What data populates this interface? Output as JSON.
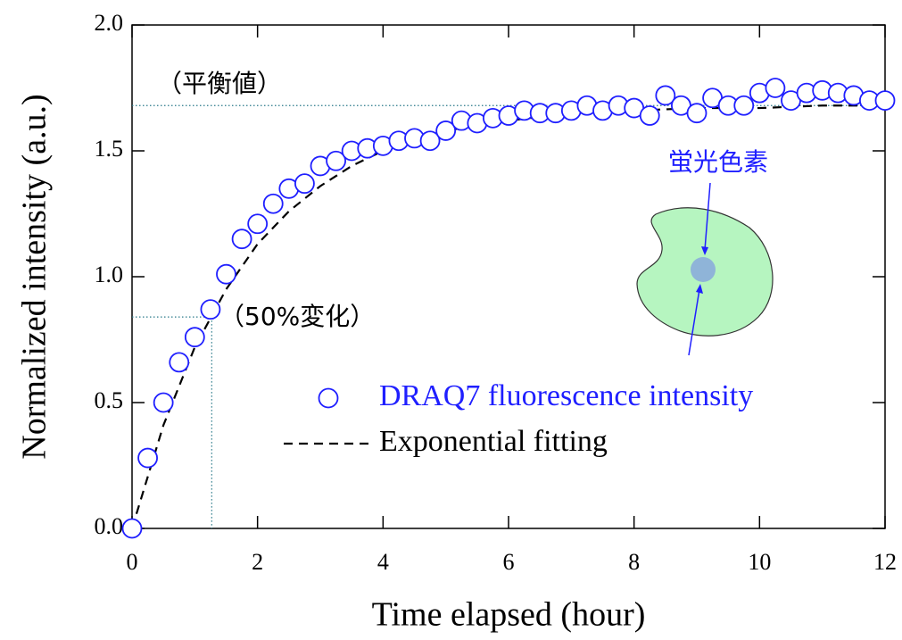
{
  "chart_data": {
    "type": "scatter",
    "x_label": "Time elapsed (hour)",
    "y_label": "Normalized intensity (a.u.)",
    "xlim": [
      0,
      12
    ],
    "ylim": [
      0,
      2
    ],
    "xticks": [
      0,
      2,
      4,
      6,
      8,
      10,
      12
    ],
    "yticks": [
      {
        "value": 0,
        "label": "0.0"
      },
      0.5,
      {
        "value": 1,
        "label": "1.0"
      },
      1.5,
      {
        "value": 2,
        "label": "2.0"
      }
    ],
    "series": [
      {
        "name": "DRAQ7 fluorescence intensity",
        "type": "scatter",
        "color": "#1f1fff",
        "x": [
          0,
          0.25,
          0.5,
          0.75,
          1,
          1.25,
          1.5,
          1.75,
          2,
          2.25,
          2.5,
          2.75,
          3,
          3.25,
          3.5,
          3.75,
          4,
          4.25,
          4.5,
          4.75,
          5,
          5.25,
          5.5,
          5.75,
          6,
          6.25,
          6.5,
          6.75,
          7,
          7.25,
          7.5,
          7.75,
          8,
          8.25,
          8.5,
          8.75,
          9,
          9.25,
          9.5,
          9.75,
          10,
          10.25,
          10.5,
          10.75,
          11,
          11.25,
          11.5,
          11.75,
          12
        ],
        "values": [
          0,
          0.28,
          0.5,
          0.66,
          0.76,
          0.87,
          1.01,
          1.15,
          1.21,
          1.29,
          1.35,
          1.37,
          1.44,
          1.46,
          1.5,
          1.51,
          1.52,
          1.54,
          1.55,
          1.54,
          1.58,
          1.62,
          1.61,
          1.63,
          1.64,
          1.66,
          1.65,
          1.65,
          1.66,
          1.68,
          1.66,
          1.68,
          1.67,
          1.64,
          1.72,
          1.68,
          1.65,
          1.71,
          1.68,
          1.68,
          1.73,
          1.75,
          1.7,
          1.73,
          1.74,
          1.73,
          1.72,
          1.7,
          1.7
        ]
      },
      {
        "name": "Exponential fitting",
        "type": "line",
        "color": "#000000",
        "dashed": true,
        "x": [
          0,
          0.5,
          1,
          1.5,
          2,
          2.5,
          3,
          3.5,
          4,
          4.5,
          5,
          6,
          7,
          8,
          9,
          10,
          11,
          12
        ],
        "values": [
          0,
          0.41,
          0.72,
          0.95,
          1.13,
          1.26,
          1.36,
          1.44,
          1.5,
          1.54,
          1.58,
          1.62,
          1.65,
          1.66,
          1.67,
          1.67,
          1.68,
          1.68
        ]
      }
    ],
    "annotations": [
      {
        "text": "（平衡値）",
        "y": 1.68
      },
      {
        "text": "（50%変化）",
        "x": 1.27,
        "y": 0.84
      },
      {
        "text": "蛍光色素"
      }
    ]
  }
}
